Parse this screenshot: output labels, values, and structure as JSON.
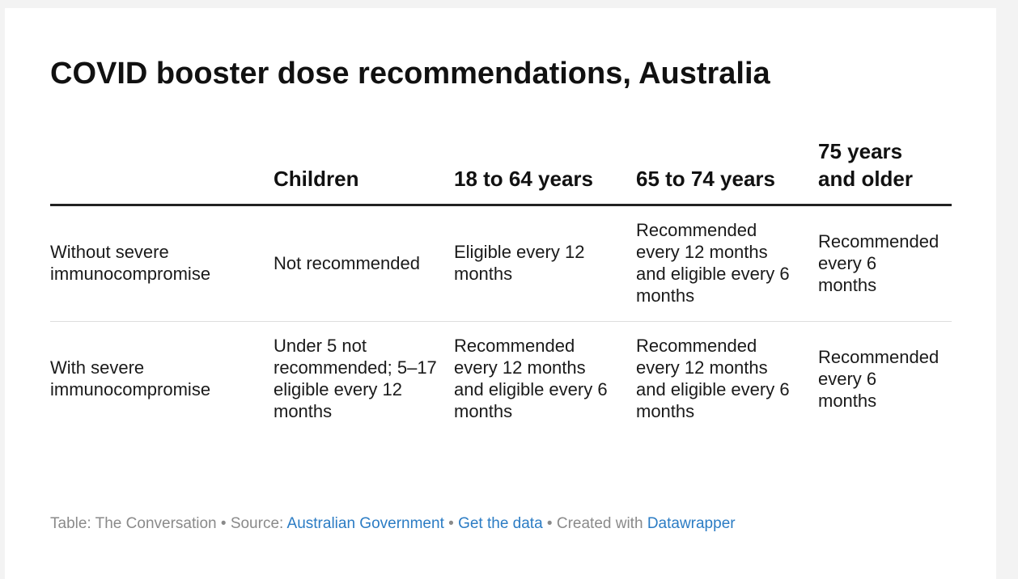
{
  "title": "COVID booster dose recommendations, Australia",
  "chart_data": {
    "type": "table",
    "title": "COVID booster dose recommendations, Australia",
    "columns": [
      "",
      "Children",
      "18 to 64 years",
      "65 to 74 years",
      "75 years and older"
    ],
    "rows": [
      {
        "label": "Without severe immunocompromise",
        "values": [
          "Not recommended",
          "Eligible every 12 months",
          "Recommended every 12 months and eligible every 6 months",
          "Recommended every 6 months"
        ]
      },
      {
        "label": "With severe immunocompromise",
        "values": [
          "Under 5 not recommended; 5–17 eligible every 12 months",
          "Recommended every 12 months and eligible every 6 months",
          "Recommended every 12 months and eligible every 6 months",
          "Recommended every 6 months"
        ]
      }
    ]
  },
  "footer": {
    "prefix": "Table: The Conversation • Source: ",
    "source_link": "Australian Government",
    "sep1": " • ",
    "data_link": "Get the data",
    "sep2": " • Created with ",
    "tool_link": "Datawrapper"
  },
  "colors": {
    "link": "#2b7cc4",
    "footer_text": "#8a8a8a",
    "header_rule": "#222222",
    "row_divider": "#dddddd"
  }
}
